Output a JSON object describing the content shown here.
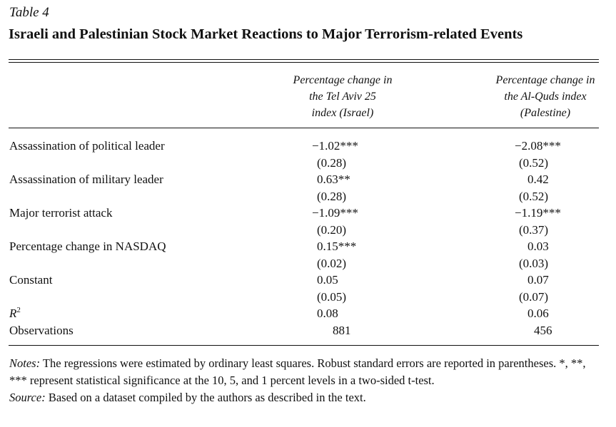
{
  "table_label": "Table 4",
  "table_title": "Israeli and Palestinian Stock Market Reactions to Major Terrorism-related Events",
  "columns": [
    {
      "line1": "Percentage change in",
      "line2": "the Tel Aviv 25",
      "line3": "index (Israel)"
    },
    {
      "line1": "Percentage change in",
      "line2": "the Al-Quds index",
      "line3": "(Palestine)"
    }
  ],
  "rows": [
    {
      "label": "Assassination of political leader",
      "israel": "−1.02***",
      "israel_se": "(0.28)",
      "palestine": "−2.08***",
      "palestine_se": "(0.52)"
    },
    {
      "label": "Assassination of military leader",
      "israel": "0.63**",
      "israel_se": "(0.28)",
      "palestine": "0.42",
      "palestine_se": "(0.52)"
    },
    {
      "label": "Major terrorist attack",
      "israel": "−1.09***",
      "israel_se": "(0.20)",
      "palestine": "−1.19***",
      "palestine_se": "(0.37)"
    },
    {
      "label": "Percentage change in NASDAQ",
      "israel": "0.15***",
      "israel_se": "(0.02)",
      "palestine": "0.03",
      "palestine_se": "(0.03)"
    },
    {
      "label": "Constant",
      "israel": "0.05",
      "israel_se": "(0.05)",
      "palestine": "0.07",
      "palestine_se": "(0.07)"
    }
  ],
  "r2": {
    "label": "R",
    "sup": "2",
    "israel": "0.08",
    "palestine": "0.06"
  },
  "observations": {
    "label": "Observations",
    "israel": "881",
    "palestine": "456"
  },
  "notes": {
    "notes_lead": "Notes:",
    "notes_text": "The regressions were estimated by ordinary least squares. Robust standard errors are reported in parentheses. *, **, *** represent statistical significance at the 10, 5, and 1 percent levels in a two-sided t-test.",
    "source_lead": "Source:",
    "source_text": "Based on a dataset compiled by the authors as described in the text."
  }
}
